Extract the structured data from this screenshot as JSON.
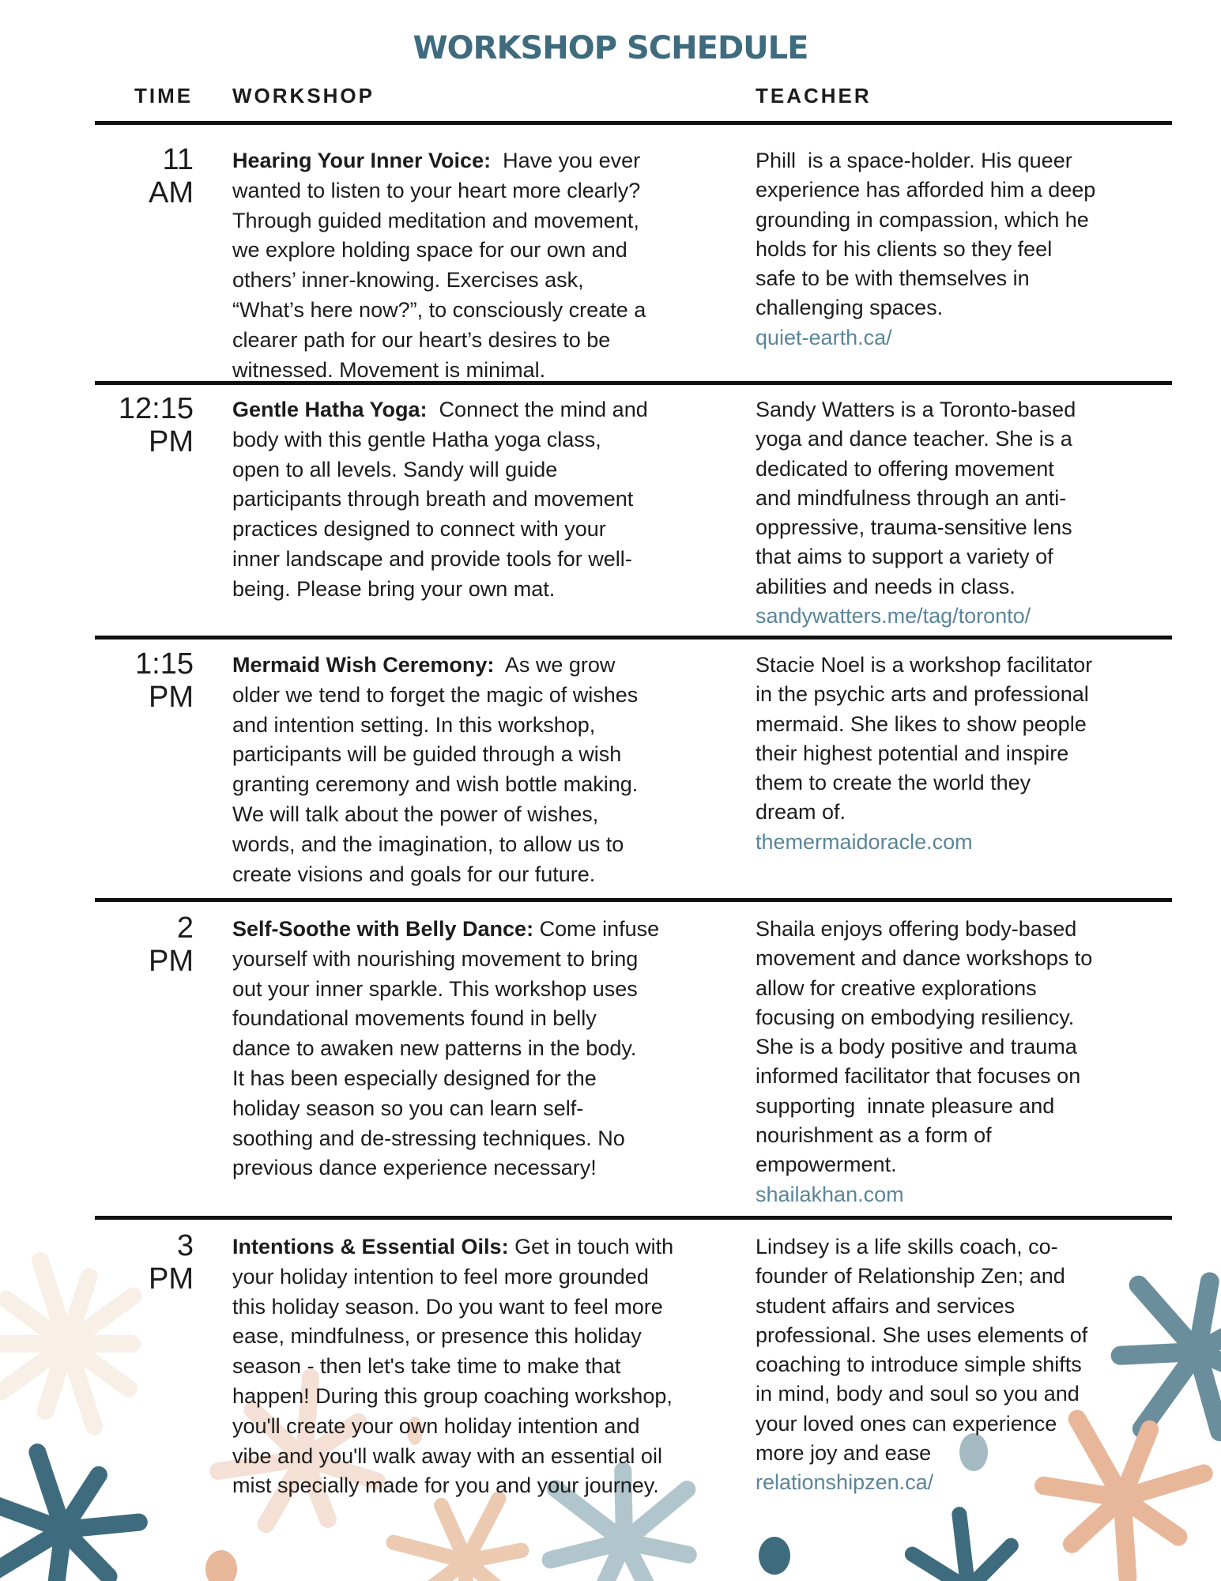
{
  "title": "WORKSHOP SCHEDULE",
  "colors": {
    "title": "#3f6b7e",
    "link": "#5a8599",
    "text": "#1c1c1c",
    "rule": "#111111"
  },
  "headers": {
    "time": "TIME",
    "workshop": "WORKSHOP",
    "teacher": "TEACHER"
  },
  "rows": [
    {
      "time": [
        "11",
        "AM"
      ],
      "workshop_title": "Hearing Your Inner Voice:",
      "workshop_lines": [
        "  Have you ever",
        "wanted to listen to your heart more clearly?",
        "Through guided meditation and movement,",
        "we explore holding space for our own and",
        "others’ inner-knowing. Exercises ask,",
        "“What’s here now?”, to consciously create a",
        "clearer path for our heart’s desires to be",
        "witnessed. Movement is minimal."
      ],
      "teacher_lines": [
        "Phill  is a space-holder. His queer",
        "experience has afforded him a deep",
        "grounding in compassion, which he",
        "holds for his clients so they feel",
        "safe to be with themselves in",
        "challenging spaces."
      ],
      "link": "quiet-earth.ca/"
    },
    {
      "time": [
        "12:15",
        "PM"
      ],
      "workshop_title": "Gentle Hatha Yoga:",
      "workshop_lines": [
        "  Connect the mind and",
        "body with this gentle Hatha yoga class,",
        "open to all levels. Sandy will guide",
        "participants through breath and movement",
        "practices designed to connect with your",
        "inner landscape and provide tools for well-",
        "being. Please bring your own mat."
      ],
      "teacher_lines": [
        "Sandy Watters is a Toronto-based",
        "yoga and dance teacher. She is a",
        "dedicated to offering movement",
        "and mindfulness through an anti-",
        "oppressive, trauma-sensitive lens",
        "that aims to support a variety of",
        "abilities and needs in class."
      ],
      "link": "sandywatters.me/tag/toronto/"
    },
    {
      "time": [
        "1:15",
        "PM"
      ],
      "workshop_title": "Mermaid Wish Ceremony:",
      "workshop_lines": [
        "  As we grow",
        "older we tend to forget the magic of wishes",
        "and intention setting. In this workshop,",
        "participants will be guided through a wish",
        "granting ceremony and wish bottle making.",
        "We will talk about the power of wishes,",
        "words, and the imagination, to allow us to",
        "create visions and goals for our future."
      ],
      "teacher_lines": [
        "Stacie Noel is a workshop facilitator",
        "in the psychic arts and professional",
        "mermaid. She likes to show people",
        "their highest potential and inspire",
        "them to create the world they",
        "dream of."
      ],
      "link": "themermaidoracle.com"
    },
    {
      "time": [
        "2",
        "PM"
      ],
      "workshop_title": "Self-Soothe with Belly Dance:",
      "workshop_lines": [
        " Come infuse",
        "yourself with nourishing movement to bring",
        "out your inner sparkle. This workshop uses",
        "foundational movements found in belly",
        "dance to awaken new patterns in the body.",
        "It has been especially designed for the",
        "holiday season so you can learn self-",
        "soothing and de-stressing techniques. No",
        "previous dance experience necessary!"
      ],
      "teacher_lines": [
        "Shaila enjoys offering body-based",
        "movement and dance workshops to",
        "allow for creative explorations",
        "focusing on embodying resiliency.",
        "She is a body positive and trauma",
        "informed facilitator that focuses on",
        "supporting  innate pleasure and",
        "nourishment as a form of",
        "empowerment."
      ],
      "link": "shailakhan.com"
    },
    {
      "time": [
        "3",
        "PM"
      ],
      "workshop_title": "Intentions & Essential Oils:",
      "workshop_lines": [
        " Get in touch with",
        "your holiday intention to feel more grounded",
        "this holiday season. Do you want to feel more",
        "ease, mindfulness, or presence this holiday",
        "season - then let's take time to make that",
        "happen! During this group coaching workshop,",
        "you'll create your own holiday intention and",
        "vibe and you'll walk away with an essential oil",
        "mist specially made for you and your journey."
      ],
      "teacher_lines": [
        "Lindsey is a life skills coach, co-",
        "founder of Relationship Zen; and",
        "student affairs and services",
        "professional. She uses elements of",
        "coaching to introduce simple shifts",
        "in mind, body and soul so you and",
        "your loved ones can experience",
        "more joy and ease"
      ],
      "link": "relationshipzen.ca/"
    }
  ]
}
